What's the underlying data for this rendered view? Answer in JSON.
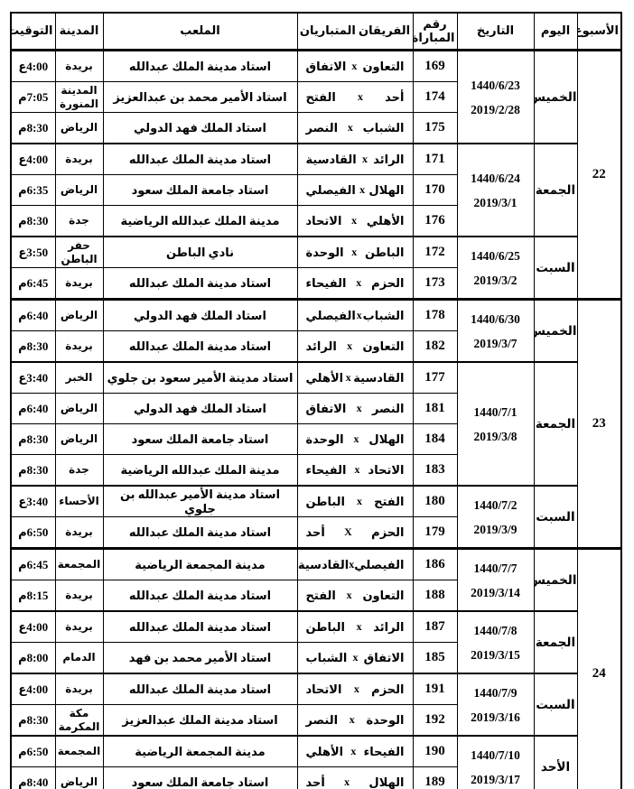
{
  "colors": {
    "background": "#ffffff",
    "text": "#000000",
    "grid": "#000000"
  },
  "header": {
    "week": "الأسبوع",
    "day": "اليوم",
    "date": "التاريخ",
    "match_no": "رقم المباراة",
    "teams": "الفريقان المتباريان",
    "stadium": "الملعب",
    "city": "المدينة",
    "time": "التوقيت"
  },
  "weeks": [
    {
      "week": "22",
      "days": [
        {
          "day": "الخميس",
          "hijri": "1440/6/23",
          "greg": "2019/2/28",
          "matches": [
            {
              "no": "169",
              "t1": "التعاون",
              "sep": "x",
              "t2": "الاتفاق",
              "stadium": "استاد مدينة الملك عبدالله",
              "city": "بريدة",
              "time": "4:00ع"
            },
            {
              "no": "174",
              "t1": "أحد",
              "sep": "x",
              "t2": "الفتح",
              "stadium": "استاد الأمير محمد بن عبدالعزيز",
              "city": "المدينة المنورة",
              "time": "7:05م"
            },
            {
              "no": "175",
              "t1": "الشباب",
              "sep": "x",
              "t2": "النصر",
              "stadium": "استاد الملك فهد الدولي",
              "city": "الرياض",
              "time": "8:30م"
            }
          ]
        },
        {
          "day": "الجمعة",
          "hijri": "1440/6/24",
          "greg": "2019/3/1",
          "matches": [
            {
              "no": "171",
              "t1": "الرائد",
              "sep": "x",
              "t2": "القادسية",
              "stadium": "استاد مدينة الملك عبدالله",
              "city": "بريدة",
              "time": "4:00ع"
            },
            {
              "no": "170",
              "t1": "الهلال",
              "sep": "x",
              "t2": "الفيصلي",
              "stadium": "استاد جامعة الملك سعود",
              "city": "الرياض",
              "time": "6:35م"
            },
            {
              "no": "176",
              "t1": "الأهلي",
              "sep": "x",
              "t2": "الاتحاد",
              "stadium": "مدينة الملك عبدالله الرياضية",
              "city": "جدة",
              "time": "8:30م"
            }
          ]
        },
        {
          "day": "السبت",
          "hijri": "1440/6/25",
          "greg": "2019/3/2",
          "matches": [
            {
              "no": "172",
              "t1": "الباطن",
              "sep": "x",
              "t2": "الوحدة",
              "stadium": "نادي الباطن",
              "city": "حفر الباطن",
              "time": "3:50ع"
            },
            {
              "no": "173",
              "t1": "الحزم",
              "sep": "x",
              "t2": "الفيحاء",
              "stadium": "استاد مدينة الملك عبدالله",
              "city": "بريدة",
              "time": "6:45م"
            }
          ]
        }
      ]
    },
    {
      "week": "23",
      "days": [
        {
          "day": "الخميس",
          "hijri": "1440/6/30",
          "greg": "2019/3/7",
          "matches": [
            {
              "no": "178",
              "t1": "الشباب",
              "sep": "x",
              "t2": "الفيصلي",
              "stadium": "استاد الملك فهد الدولي",
              "city": "الرياض",
              "time": "6:40م"
            },
            {
              "no": "182",
              "t1": "التعاون",
              "sep": "x",
              "t2": "الرائد",
              "stadium": "استاد مدينة الملك عبدالله",
              "city": "بريدة",
              "time": "8:30م"
            }
          ]
        },
        {
          "day": "الجمعة",
          "hijri": "1440/7/1",
          "greg": "2019/3/8",
          "matches": [
            {
              "no": "177",
              "t1": "القادسية",
              "sep": "x",
              "t2": "الأهلي",
              "stadium": "استاد مدينة الأمير سعود بن جلوي",
              "city": "الخبر",
              "time": "3:40ع"
            },
            {
              "no": "181",
              "t1": "النصر",
              "sep": "x",
              "t2": "الاتفاق",
              "stadium": "استاد الملك فهد الدولي",
              "city": "الرياض",
              "time": "6:40م"
            },
            {
              "no": "184",
              "t1": "الهلال",
              "sep": "x",
              "t2": "الوحدة",
              "stadium": "استاد جامعة الملك سعود",
              "city": "الرياض",
              "time": "8:30م"
            },
            {
              "no": "183",
              "t1": "الاتحاد",
              "sep": "x",
              "t2": "الفيحاء",
              "stadium": "مدينة الملك عبدالله الرياضية",
              "city": "جدة",
              "time": "8:30م"
            }
          ]
        },
        {
          "day": "السبت",
          "hijri": "1440/7/2",
          "greg": "2019/3/9",
          "matches": [
            {
              "no": "180",
              "t1": "الفتح",
              "sep": "x",
              "t2": "الباطن",
              "stadium": "استاد مدينة الأمير عبدالله بن جلوي",
              "city": "الأحساء",
              "time": "3:40ع"
            },
            {
              "no": "179",
              "t1": "الحزم",
              "sep": "X",
              "t2": "أحد",
              "stadium": "استاد مدينة الملك عبدالله",
              "city": "بريدة",
              "time": "6:50م"
            }
          ]
        }
      ]
    },
    {
      "week": "24",
      "days": [
        {
          "day": "الخميس",
          "hijri": "1440/7/7",
          "greg": "2019/3/14",
          "matches": [
            {
              "no": "186",
              "t1": "الفيصلي",
              "sep": "x",
              "t2": "القادسية",
              "stadium": "مدينة المجمعة الرياضية",
              "city": "المجمعة",
              "time": "6:45م"
            },
            {
              "no": "188",
              "t1": "التعاون",
              "sep": "x",
              "t2": "الفتح",
              "stadium": "استاد مدينة الملك عبدالله",
              "city": "بريدة",
              "time": "8:15م"
            }
          ]
        },
        {
          "day": "الجمعة",
          "hijri": "1440/7/8",
          "greg": "2019/3/15",
          "matches": [
            {
              "no": "187",
              "t1": "الرائد",
              "sep": "x",
              "t2": "الباطن",
              "stadium": "استاد مدينة الملك عبدالله",
              "city": "بريدة",
              "time": "4:00ع"
            },
            {
              "no": "185",
              "t1": "الاتفاق",
              "sep": "x",
              "t2": "الشباب",
              "stadium": "استاد الأمير محمد بن فهد",
              "city": "الدمام",
              "time": "8:00م"
            }
          ]
        },
        {
          "day": "السبت",
          "hijri": "1440/7/9",
          "greg": "2019/3/16",
          "matches": [
            {
              "no": "191",
              "t1": "الحزم",
              "sep": "x",
              "t2": "الاتحاد",
              "stadium": "استاد مدينة الملك عبدالله",
              "city": "بريدة",
              "time": "4:00ع"
            },
            {
              "no": "192",
              "t1": "الوحدة",
              "sep": "x",
              "t2": "النصر",
              "stadium": "استاد مدينة الملك عبدالعزيز",
              "city": "مكة المكرمة",
              "time": "8:30م"
            }
          ]
        },
        {
          "day": "الأحد",
          "hijri": "1440/7/10",
          "greg": "2019/3/17",
          "matches": [
            {
              "no": "190",
              "t1": "الفيحاء",
              "sep": "x",
              "t2": "الأهلي",
              "stadium": "مدينة المجمعة الرياضية",
              "city": "المجمعة",
              "time": "6:50م"
            },
            {
              "no": "189",
              "t1": "الهلال",
              "sep": "x",
              "t2": "أحد",
              "stadium": "استاد جامعة الملك سعود",
              "city": "الرياض",
              "time": "8:40م"
            }
          ]
        }
      ]
    }
  ]
}
